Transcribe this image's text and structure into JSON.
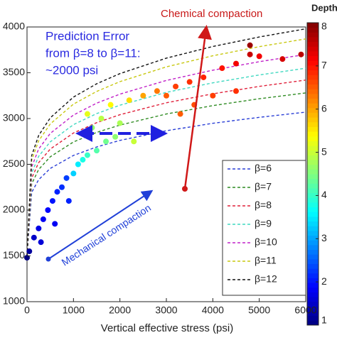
{
  "chart_data": {
    "type": "scatter",
    "x_label": "Vertical effective stress (psi)",
    "xlim": [
      0,
      6000
    ],
    "xticks": [
      0,
      1000,
      2000,
      3000,
      4000,
      5000,
      6000
    ],
    "ylim": [
      1000,
      4000
    ],
    "yticks": [
      1000,
      1500,
      2000,
      2500,
      3000,
      3500,
      4000
    ],
    "colorbar": {
      "title": "Depth",
      "clim": [
        1,
        8
      ],
      "ticks": [
        1,
        2,
        3,
        4,
        5,
        6,
        7,
        8
      ]
    },
    "legend": "lower right",
    "curves": {
      "x": [
        0,
        100,
        250,
        500,
        1000,
        1500,
        2000,
        3000,
        4000,
        5000,
        6000
      ],
      "series": [
        {
          "name": "β=6",
          "color": "#2a3fd6",
          "values": [
            1500,
            2192,
            2332,
            2455,
            2597,
            2690,
            2761,
            2867,
            2948,
            3013,
            3070
          ]
        },
        {
          "name": "β=7",
          "color": "#2e8b22",
          "values": [
            1500,
            2285,
            2443,
            2582,
            2744,
            2849,
            2929,
            3050,
            3141,
            3216,
            3280
          ]
        },
        {
          "name": "β=8",
          "color": "#e0203a",
          "values": [
            1500,
            2347,
            2518,
            2667,
            2842,
            2955,
            3042,
            3172,
            3270,
            3351,
            3420
          ]
        },
        {
          "name": "β=9",
          "color": "#3fd8c0",
          "values": [
            1500,
            2404,
            2587,
            2746,
            2933,
            3054,
            3146,
            3286,
            3390,
            3476,
            3550
          ]
        },
        {
          "name": "β=10",
          "color": "#c020c8",
          "values": [
            1500,
            2470,
            2666,
            2838,
            3038,
            3168,
            3267,
            3416,
            3528,
            3621,
            3700
          ]
        },
        {
          "name": "β=11",
          "color": "#c8c810",
          "values": [
            1500,
            2545,
            2756,
            2941,
            3157,
            3296,
            3403,
            3564,
            3685,
            3785,
            3870
          ]
        },
        {
          "name": "β=12",
          "color": "#111111",
          "values": [
            1500,
            2594,
            2814,
            3008,
            3234,
            3380,
            3491,
            3660,
            3787,
            3891,
            3980
          ]
        }
      ]
    },
    "points": {
      "x": [
        0,
        50,
        150,
        250,
        350,
        450,
        550,
        650,
        750,
        850,
        300,
        600,
        900,
        1000,
        1100,
        1200,
        1300,
        1500,
        1700,
        1900,
        2000,
        1400,
        1600,
        1300,
        1800,
        2200,
        2500,
        2800,
        3000,
        3200,
        3500,
        3800,
        4200,
        4500,
        4800,
        5000,
        5500,
        5900,
        4800,
        3600,
        4000,
        4500,
        3300,
        2300
      ],
      "values": [
        1480,
        1550,
        1700,
        1800,
        1900,
        2000,
        2100,
        2200,
        2250,
        2350,
        1650,
        1850,
        2100,
        2400,
        2500,
        2550,
        2600,
        2650,
        2750,
        2800,
        2950,
        2900,
        3000,
        3050,
        3150,
        3200,
        3250,
        3300,
        3250,
        3350,
        3400,
        3450,
        3550,
        3600,
        3700,
        3680,
        3650,
        3700,
        3800,
        3150,
        3250,
        3300,
        3050,
        2750
      ],
      "depth": [
        1,
        1.2,
        1.5,
        1.7,
        1.8,
        1.9,
        2.0,
        2.1,
        2.2,
        2.3,
        1.6,
        1.8,
        2.1,
        3.3,
        3.5,
        3.8,
        4.0,
        4.2,
        4.4,
        4.6,
        4.8,
        4.6,
        4.9,
        5.2,
        5.4,
        5.6,
        6.0,
        6.3,
        6.5,
        6.7,
        6.8,
        6.9,
        7.0,
        7.2,
        7.5,
        7.2,
        7.4,
        7.6,
        7.8,
        6.6,
        6.7,
        6.8,
        6.5,
        5.0
      ]
    },
    "annotations": {
      "chemical": "Chemical compaction",
      "error_1": "Prediction Error",
      "error_2": "from β=8 to β=11:",
      "error_3": "~2000 psi",
      "mechanical": "Mechanical compaction"
    }
  }
}
